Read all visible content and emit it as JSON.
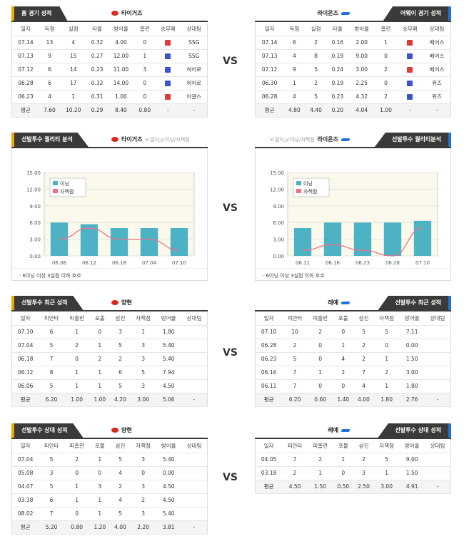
{
  "vs_label": "VS",
  "home_record": {
    "tag": "홈 경기 성적",
    "team": "타이거즈",
    "headers": [
      "일자",
      "득점",
      "실점",
      "타율",
      "방어율",
      "홈런",
      "승무패",
      "상대팀"
    ],
    "rows": [
      [
        "07.14",
        "13",
        "4",
        "0.32",
        "4.00",
        "0",
        "L",
        "SSG"
      ],
      [
        "07.13",
        "9",
        "15",
        "0.27",
        "12.00",
        "1",
        "W",
        "SSG"
      ],
      [
        "07.12",
        "6",
        "14",
        "0.23",
        "11.00",
        "3",
        "W",
        "히어로"
      ],
      [
        "06.28",
        "6",
        "17",
        "0.32",
        "14.00",
        "0",
        "W",
        "히어로"
      ],
      [
        "06.23",
        "4",
        "1",
        "0.31",
        "1.00",
        "0",
        "L",
        "이글스"
      ]
    ],
    "avg": [
      "평균",
      "7.60",
      "10.20",
      "0.29",
      "8.40",
      "0.80",
      "-",
      "-"
    ]
  },
  "away_record": {
    "tag": "어웨이 경기 성적",
    "team": "라이온즈",
    "headers": [
      "일자",
      "득점",
      "실점",
      "타율",
      "방어율",
      "홈런",
      "승무패",
      "상대팀"
    ],
    "rows": [
      [
        "07.14",
        "6",
        "2",
        "0.16",
        "2.00",
        "1",
        "L",
        "베어스"
      ],
      [
        "07.13",
        "4",
        "8",
        "0.19",
        "9.00",
        "0",
        "W",
        "베어스"
      ],
      [
        "07.12",
        "9",
        "5",
        "0.24",
        "3.00",
        "2",
        "L",
        "베어스"
      ],
      [
        "06.30",
        "1",
        "2",
        "0.19",
        "2.25",
        "0",
        "W",
        "위즈"
      ],
      [
        "06.28",
        "4",
        "5",
        "0.23",
        "4.32",
        "2",
        "W",
        "위즈"
      ]
    ],
    "avg": [
      "평균",
      "4.80",
      "4.40",
      "0.20",
      "4.04",
      "1.00",
      "-",
      "-"
    ]
  },
  "quality_left": {
    "tag": "선발투수 퀄리티 분석",
    "team": "타이거즈",
    "hint": "x:일자,y:이닝/자책점",
    "note": "· 6이닝 이상 3실점 이하 호호"
  },
  "quality_right": {
    "tag": "선발투수 퀄리티분석",
    "team": "라이온즈",
    "hint": "x:일자,y:이닝/자책점",
    "note": "· 6이닝 이상 3실점 이하 호호"
  },
  "chart_data": [
    {
      "type": "bar",
      "categories": [
        "06.06",
        "06.12",
        "06.18",
        "07.04",
        "07.10"
      ],
      "series": [
        {
          "name": "이닝",
          "values": [
            6,
            5.7,
            5,
            5,
            5
          ]
        },
        {
          "name": "자책점",
          "values": [
            3,
            5,
            3,
            3,
            1
          ]
        }
      ],
      "ylim": [
        0,
        15
      ],
      "yticks": [
        "0.00",
        "3.00",
        "6.00",
        "9.00",
        "12.00",
        "15.00"
      ],
      "legend": "top-left"
    },
    {
      "type": "bar",
      "categories": [
        "06.11",
        "06.16",
        "06.23",
        "06.28",
        "07.10"
      ],
      "series": [
        {
          "name": "이닝",
          "values": [
            5,
            6,
            6,
            6,
            6.3
          ]
        },
        {
          "name": "자책점",
          "values": [
            1,
            2,
            1,
            0,
            5
          ]
        }
      ],
      "ylim": [
        0,
        15
      ],
      "yticks": [
        "0.00",
        "3.00",
        "6.00",
        "9.00",
        "12.00",
        "15.00"
      ],
      "legend": "top-left"
    }
  ],
  "recent_left": {
    "tag": "선발투수 최근 성적",
    "player": "양현",
    "headers": [
      "일자",
      "피안타",
      "피홈런",
      "포볼",
      "삼진",
      "자책점",
      "방어율",
      "상대팀"
    ],
    "rows": [
      [
        "07.10",
        "6",
        "1",
        "0",
        "3",
        "1",
        "1.80",
        ""
      ],
      [
        "07.04",
        "5",
        "2",
        "1",
        "5",
        "3",
        "5.40",
        ""
      ],
      [
        "06.18",
        "7",
        "0",
        "2",
        "2",
        "3",
        "5.40",
        ""
      ],
      [
        "06.12",
        "8",
        "1",
        "1",
        "6",
        "5",
        "7.94",
        ""
      ],
      [
        "06.06",
        "5",
        "1",
        "1",
        "5",
        "3",
        "4.50",
        ""
      ]
    ],
    "avg": [
      "평균",
      "6.20",
      "1.00",
      "1.00",
      "4.20",
      "3.00",
      "5.06",
      "-"
    ]
  },
  "recent_right": {
    "tag": "선발투수 최근 성적",
    "player": "레예",
    "headers": [
      "일자",
      "피안타",
      "피홈런",
      "포볼",
      "삼진",
      "자책점",
      "방어율",
      "상대팀"
    ],
    "rows": [
      [
        "07.10",
        "10",
        "2",
        "0",
        "5",
        "5",
        "7.11",
        ""
      ],
      [
        "06.28",
        "2",
        "0",
        "1",
        "2",
        "0",
        "0.00",
        ""
      ],
      [
        "06.23",
        "5",
        "0",
        "4",
        "2",
        "1",
        "1.50",
        ""
      ],
      [
        "06.16",
        "7",
        "1",
        "2",
        "7",
        "2",
        "3.00",
        ""
      ],
      [
        "06.11",
        "7",
        "0",
        "0",
        "4",
        "1",
        "1.80",
        ""
      ]
    ],
    "avg": [
      "평균",
      "6.20",
      "0.60",
      "1.40",
      "4.00",
      "1.80",
      "2.76",
      "-"
    ]
  },
  "vs_left": {
    "tag": "선발투수 상대 성적",
    "player": "양현",
    "headers": [
      "일자",
      "피안타",
      "피홈런",
      "포볼",
      "삼진",
      "자책점",
      "방어율",
      "상대팀"
    ],
    "rows": [
      [
        "07.04",
        "5",
        "2",
        "1",
        "5",
        "3",
        "5.40",
        ""
      ],
      [
        "05.08",
        "3",
        "0",
        "0",
        "4",
        "0",
        "0.00",
        ""
      ],
      [
        "04.07",
        "5",
        "1",
        "3",
        "2",
        "3",
        "4.50",
        ""
      ],
      [
        "03.18",
        "6",
        "1",
        "1",
        "4",
        "2",
        "4.50",
        ""
      ],
      [
        "08.02",
        "7",
        "0",
        "1",
        "5",
        "3",
        "5.40",
        ""
      ]
    ],
    "avg": [
      "평균",
      "5.20",
      "0.80",
      "1.20",
      "4.00",
      "2.20",
      "3.81",
      "-"
    ]
  },
  "vs_right": {
    "tag": "선발투수 상대 성적",
    "player": "레예",
    "headers": [
      "일자",
      "피안타",
      "피홈런",
      "포볼",
      "삼진",
      "자책점",
      "방어율",
      "상대팀"
    ],
    "rows": [
      [
        "04.05",
        "7",
        "2",
        "1",
        "2",
        "5",
        "9.00",
        ""
      ],
      [
        "03.18",
        "2",
        "1",
        "0",
        "3",
        "1",
        "1.50",
        ""
      ]
    ],
    "avg": [
      "평균",
      "4.50",
      "1.50",
      "0.50",
      "2.50",
      "3.00",
      "4.91",
      "-"
    ]
  },
  "colors": {
    "bar": "#4db3c4",
    "line": "#ef6f8a",
    "dark": "#3a3a3a",
    "orange": "#f0a500",
    "blue": "#1e73d6"
  }
}
